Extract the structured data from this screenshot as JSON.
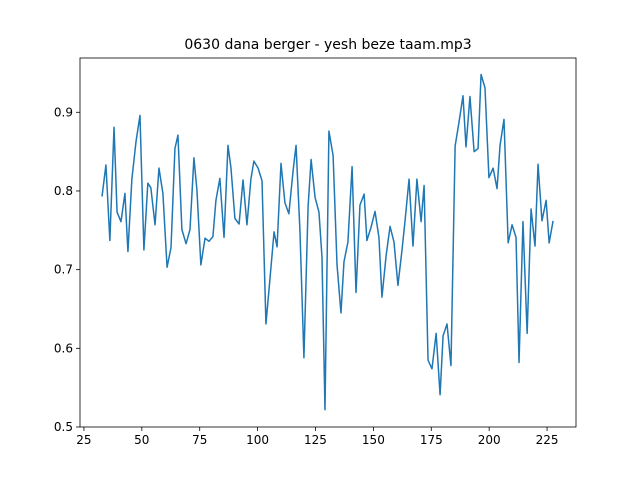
{
  "chart_data": {
    "type": "line",
    "title": "0630 dana berger - yesh beze taam.mp3",
    "x": [
      32.8,
      34.5,
      36.2,
      38.0,
      39.3,
      41.0,
      42.7,
      44.0,
      45.7,
      47.5,
      49.2,
      50.9,
      52.6,
      53.9,
      55.7,
      57.4,
      59.1,
      60.9,
      62.6,
      64.3,
      65.6,
      67.3,
      69.1,
      70.8,
      72.5,
      73.8,
      75.5,
      77.3,
      79.0,
      80.7,
      82.0,
      83.7,
      85.5,
      87.2,
      88.5,
      90.2,
      92.0,
      93.7,
      95.4,
      97.1,
      98.4,
      100.2,
      101.9,
      103.6,
      105.3,
      107.1,
      108.4,
      110.1,
      111.8,
      113.5,
      115.3,
      116.6,
      118.3,
      120.0,
      121.8,
      123.1,
      124.8,
      126.5,
      127.8,
      129.1,
      130.8,
      132.6,
      134.3,
      136.0,
      137.3,
      139.0,
      140.8,
      142.5,
      144.2,
      146.0,
      147.2,
      149.0,
      150.7,
      152.4,
      153.7,
      155.5,
      157.2,
      158.9,
      160.6,
      162.4,
      163.7,
      165.4,
      167.1,
      168.8,
      170.6,
      171.9,
      173.6,
      175.3,
      177.1,
      178.8,
      180.1,
      181.8,
      183.5,
      185.3,
      187.0,
      188.7,
      190.0,
      191.7,
      193.5,
      195.2,
      196.5,
      198.2,
      199.9,
      201.7,
      203.4,
      204.7,
      206.4,
      208.2,
      209.9,
      211.6,
      212.9,
      214.6,
      216.4,
      218.1,
      219.8,
      221.1,
      222.8,
      224.6,
      225.9,
      227.6
    ],
    "series": [
      {
        "color": "#1f77b4",
        "values": [
          0.793,
          0.833,
          0.737,
          0.881,
          0.773,
          0.761,
          0.797,
          0.723,
          0.815,
          0.863,
          0.896,
          0.725,
          0.81,
          0.804,
          0.757,
          0.829,
          0.797,
          0.703,
          0.728,
          0.854,
          0.871,
          0.751,
          0.733,
          0.751,
          0.842,
          0.801,
          0.706,
          0.74,
          0.736,
          0.742,
          0.788,
          0.816,
          0.741,
          0.858,
          0.829,
          0.765,
          0.758,
          0.814,
          0.757,
          0.815,
          0.838,
          0.829,
          0.813,
          0.631,
          0.687,
          0.748,
          0.729,
          0.835,
          0.785,
          0.771,
          0.825,
          0.858,
          0.748,
          0.588,
          0.78,
          0.84,
          0.792,
          0.773,
          0.716,
          0.522,
          0.876,
          0.845,
          0.706,
          0.645,
          0.71,
          0.735,
          0.831,
          0.671,
          0.782,
          0.796,
          0.737,
          0.754,
          0.774,
          0.741,
          0.665,
          0.718,
          0.755,
          0.735,
          0.68,
          0.726,
          0.763,
          0.815,
          0.73,
          0.815,
          0.761,
          0.807,
          0.585,
          0.574,
          0.619,
          0.541,
          0.616,
          0.631,
          0.578,
          0.857,
          0.888,
          0.921,
          0.856,
          0.92,
          0.85,
          0.854,
          0.948,
          0.931,
          0.817,
          0.829,
          0.803,
          0.858,
          0.891,
          0.734,
          0.757,
          0.741,
          0.582,
          0.761,
          0.619,
          0.777,
          0.73,
          0.834,
          0.762,
          0.788,
          0.734,
          0.762
        ]
      }
    ],
    "xlim": [
      23.3,
      237.5
    ],
    "ylim": [
      0.5,
      0.969
    ],
    "xticks": [
      25,
      50,
      75,
      100,
      125,
      150,
      175,
      200,
      225
    ],
    "yticks": [
      0.5,
      0.6,
      0.7,
      0.8,
      0.9
    ]
  }
}
